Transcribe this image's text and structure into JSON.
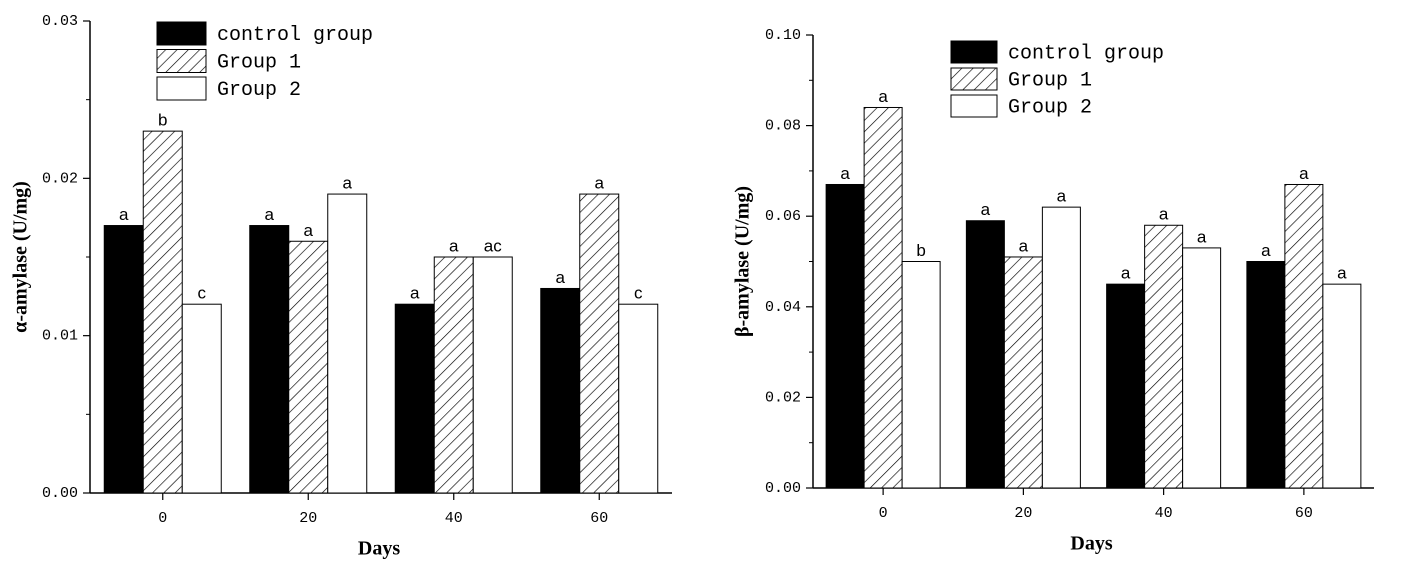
{
  "chart_data": [
    {
      "type": "bar",
      "y_label": "α-amylase (U/mg)",
      "x_label": "Days",
      "categories": [
        "0",
        "20",
        "40",
        "60"
      ],
      "ylim": [
        0,
        0.03
      ],
      "yticks": [
        {
          "value": 0,
          "label": "0.00"
        },
        0.01,
        0.02,
        0.03
      ],
      "series": [
        {
          "name": "control group",
          "color": "#000000",
          "hatch": false,
          "values": [
            0.017,
            0.017,
            0.012,
            0.013
          ],
          "labels": [
            "a",
            "a",
            "a",
            "a"
          ]
        },
        {
          "name": "Group 1",
          "color": "#ffffff",
          "hatch": true,
          "values": [
            0.023,
            0.016,
            0.015,
            0.019
          ],
          "labels": [
            "b",
            "a",
            "a",
            "a"
          ]
        },
        {
          "name": "Group 2",
          "color": "#ffffff",
          "hatch": false,
          "values": [
            0.012,
            0.019,
            0.015,
            0.012
          ],
          "labels": [
            "c",
            "a",
            "ac",
            "c"
          ]
        }
      ]
    },
    {
      "type": "bar",
      "y_label": "β-amylase (U/mg)",
      "x_label": "Days",
      "categories": [
        "0",
        "20",
        "40",
        "60"
      ],
      "ylim": [
        0,
        0.1
      ],
      "yticks": [
        {
          "value": 0,
          "label": "0.00"
        },
        0.02,
        0.04,
        0.06,
        0.08,
        {
          "value": 0.1,
          "label": "0.10"
        }
      ],
      "series": [
        {
          "name": "control group",
          "color": "#000000",
          "hatch": false,
          "values": [
            0.067,
            0.059,
            0.045,
            0.05
          ],
          "labels": [
            "a",
            "a",
            "a",
            "a"
          ]
        },
        {
          "name": "Group 1",
          "color": "#ffffff",
          "hatch": true,
          "values": [
            0.084,
            0.051,
            0.058,
            0.067
          ],
          "labels": [
            "a",
            "a",
            "a",
            "a"
          ]
        },
        {
          "name": "Group 2",
          "color": "#ffffff",
          "hatch": false,
          "values": [
            0.05,
            0.062,
            0.053,
            0.045
          ],
          "labels": [
            "b",
            "a",
            "a",
            "a"
          ]
        }
      ]
    }
  ]
}
